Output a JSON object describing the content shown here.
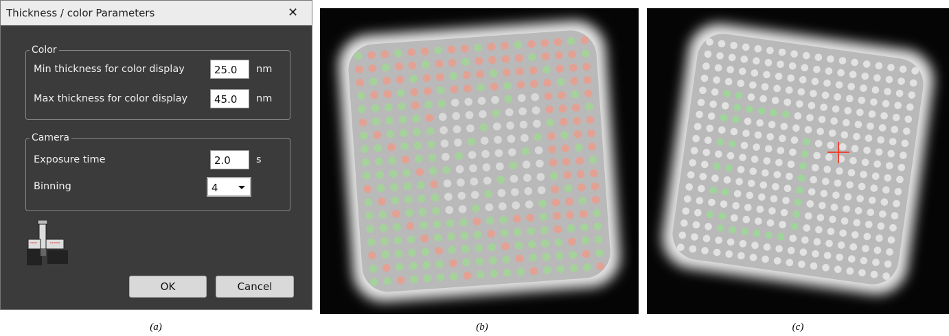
{
  "dialog": {
    "title": "Thickness / color Parameters",
    "close": "✕",
    "groups": [
      {
        "label": "Color",
        "fields": [
          {
            "label": "Min thickness for color display",
            "value": "25.0",
            "unit": "nm"
          },
          {
            "label": "Max thickness for color display",
            "value": "45.0",
            "unit": "nm"
          }
        ]
      },
      {
        "label": "Camera",
        "fields": [
          {
            "label": "Exposure time",
            "value": "2.0",
            "unit": "s"
          },
          {
            "label": "Binning",
            "value": "4"
          }
        ]
      }
    ],
    "buttons": [
      "OK",
      "Cancel"
    ]
  },
  "captions": [
    "(a)",
    "(b)",
    "(c)"
  ]
}
